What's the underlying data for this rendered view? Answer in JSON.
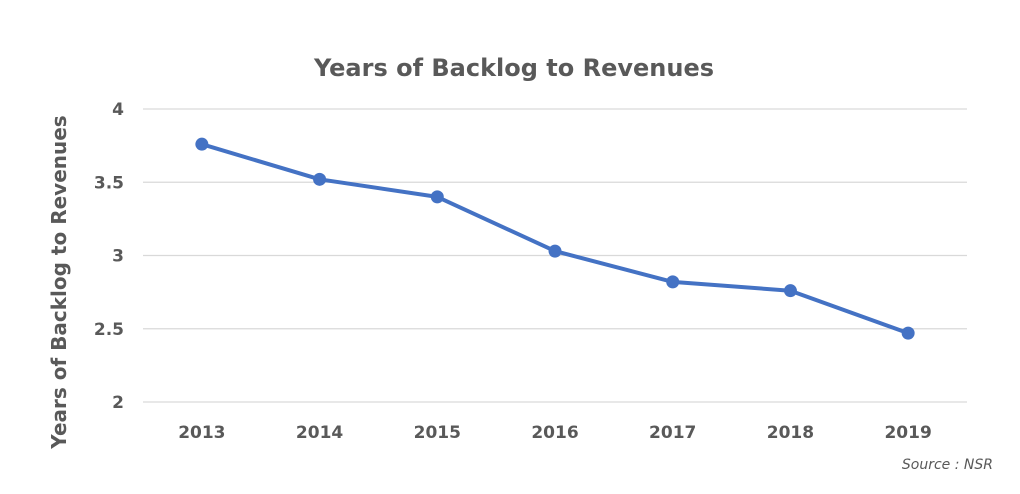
{
  "chart_data": {
    "type": "line",
    "title": "Years of Backlog to Revenues",
    "ylabel": "Years of Backlog to Revenues",
    "xlabel": "",
    "categories": [
      "2013",
      "2014",
      "2015",
      "2016",
      "2017",
      "2018",
      "2019"
    ],
    "series": [
      {
        "values": [
          3.76,
          3.52,
          3.4,
          3.03,
          2.82,
          2.76,
          2.47
        ]
      }
    ],
    "ylim": [
      2,
      4
    ],
    "yticks": [
      "2",
      "2.5",
      "3",
      "3.5",
      "4"
    ],
    "grid": true,
    "legend": "none",
    "colors": {
      "series": "#4472c4",
      "grid": "#d9d9d9",
      "text": "#595959"
    }
  },
  "source_note": "Source : NSR"
}
